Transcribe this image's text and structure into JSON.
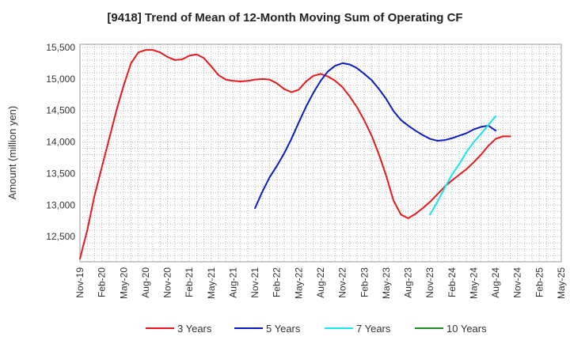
{
  "chart_data": {
    "type": "line",
    "title": "[9418]  Trend of Mean of 12-Month Moving Sum of Operating CF",
    "xlabel": "",
    "ylabel": "Amount (million yen)",
    "ylim": [
      12100,
      15550
    ],
    "yticks": [
      12500,
      13000,
      13500,
      14000,
      14500,
      15000,
      15500
    ],
    "ytick_labels": [
      "12,500",
      "13,000",
      "13,500",
      "14,000",
      "14,500",
      "15,000",
      "15,500"
    ],
    "x_start": "Nov-19",
    "x_range_months": [
      0,
      66
    ],
    "xtick_months": [
      0,
      3,
      6,
      9,
      12,
      15,
      18,
      21,
      24,
      27,
      30,
      33,
      36,
      39,
      42,
      45,
      48,
      51,
      54,
      57,
      60,
      63,
      66
    ],
    "xtick_labels": [
      "Nov-19",
      "Feb-20",
      "May-20",
      "Aug-20",
      "Nov-20",
      "Feb-21",
      "May-21",
      "Aug-21",
      "Nov-21",
      "Feb-22",
      "May-22",
      "Aug-22",
      "Nov-22",
      "Feb-23",
      "May-23",
      "Aug-23",
      "Nov-23",
      "Feb-24",
      "May-24",
      "Aug-24",
      "Nov-24",
      "Feb-25",
      "May-25"
    ],
    "grid": true,
    "legend_position": "bottom",
    "series": [
      {
        "name": "3 Years",
        "color": "#e8191c",
        "start_month": 0,
        "values": [
          12150,
          12600,
          13150,
          13600,
          14050,
          14500,
          14900,
          15250,
          15420,
          15460,
          15460,
          15420,
          15350,
          15300,
          15310,
          15370,
          15390,
          15330,
          15200,
          15060,
          14990,
          14970,
          14960,
          14970,
          14990,
          15000,
          14990,
          14930,
          14840,
          14790,
          14830,
          14960,
          15050,
          15080,
          15040,
          14970,
          14870,
          14720,
          14550,
          14340,
          14100,
          13800,
          13460,
          13070,
          12850,
          12790,
          12860,
          12950,
          13050,
          13170,
          13290,
          13390,
          13480,
          13570,
          13680,
          13800,
          13940,
          14050,
          14090,
          14090
        ]
      },
      {
        "name": "5 Years",
        "color": "#0b1bc8",
        "start_month": 24,
        "values": [
          12950,
          13210,
          13440,
          13620,
          13820,
          14050,
          14310,
          14560,
          14780,
          14970,
          15120,
          15210,
          15250,
          15230,
          15170,
          15080,
          14980,
          14840,
          14680,
          14490,
          14350,
          14260,
          14180,
          14110,
          14050,
          14020,
          14030,
          14060,
          14100,
          14140,
          14200,
          14240,
          14260,
          14180
        ]
      },
      {
        "name": "7 Years",
        "color": "#19e6e8",
        "start_month": 48,
        "values": [
          12850,
          13050,
          13270,
          13480,
          13650,
          13840,
          14000,
          14130,
          14270,
          14410
        ]
      },
      {
        "name": "10 Years",
        "color": "#1e8c1e",
        "start_month": 0,
        "values": []
      }
    ]
  }
}
